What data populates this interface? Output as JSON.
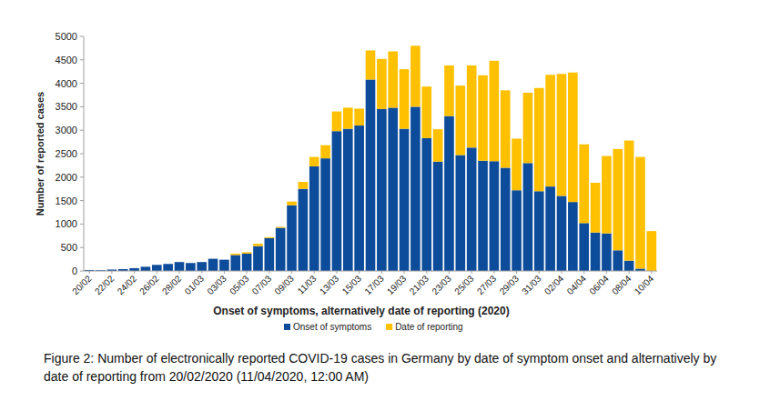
{
  "chart_data": {
    "type": "bar",
    "stacked": true,
    "title": "Figure 2: Number of electronically reported COVID-19 cases in Germany by date of symptom onset and alternatively by date of reporting from 20/02/2020 (11/04/2020, 12:00 AM)",
    "x_label": "Onset of symptoms, alternatively date of reporting (2020)",
    "y_label": "Number of reported cases",
    "categories": [
      "20/02",
      null,
      "22/02",
      null,
      "24/02",
      null,
      "26/02",
      null,
      "28/02",
      null,
      "01/03",
      null,
      "03/03",
      null,
      "05/03",
      null,
      "07/03",
      null,
      "09/03",
      null,
      "11/03",
      null,
      "13/03",
      null,
      "15/03",
      null,
      "17/03",
      null,
      "19/03",
      null,
      "21/03",
      null,
      "23/03",
      null,
      "25/03",
      null,
      "27/03",
      null,
      "29/03",
      null,
      "31/03",
      null,
      "02/04",
      null,
      "04/04",
      null,
      "06/04",
      null,
      "08/04",
      null,
      "10/04"
    ],
    "series": [
      {
        "name": "Onset of symptoms",
        "color": "#0d4c9a",
        "values": [
          20,
          15,
          30,
          40,
          60,
          90,
          130,
          150,
          190,
          170,
          190,
          260,
          240,
          340,
          370,
          530,
          700,
          920,
          1400,
          1750,
          2230,
          2400,
          2980,
          3030,
          3100,
          4080,
          3450,
          3480,
          3030,
          3500,
          2830,
          2330,
          3300,
          2470,
          2630,
          2350,
          2340,
          2200,
          1720,
          2300,
          1700,
          1800,
          1600,
          1470,
          1020,
          820,
          800,
          440,
          220,
          50,
          0
        ]
      },
      {
        "name": "Date of reporting",
        "color": "#ffc000",
        "values": [
          0,
          0,
          0,
          0,
          0,
          0,
          0,
          0,
          0,
          0,
          0,
          0,
          0,
          30,
          30,
          50,
          20,
          20,
          80,
          150,
          200,
          280,
          420,
          450,
          360,
          620,
          1070,
          1200,
          1270,
          1300,
          1100,
          690,
          1080,
          1480,
          1750,
          1820,
          2140,
          1650,
          1100,
          1500,
          2200,
          2380,
          2600,
          2760,
          1680,
          1060,
          1650,
          2160,
          2560,
          2380,
          850
        ]
      }
    ],
    "ylim": [
      0,
      5000
    ],
    "yticks": [
      0,
      500,
      1000,
      1500,
      2000,
      2500,
      3000,
      3500,
      4000,
      4500,
      5000
    ],
    "grid": false,
    "legend": "bottom"
  }
}
